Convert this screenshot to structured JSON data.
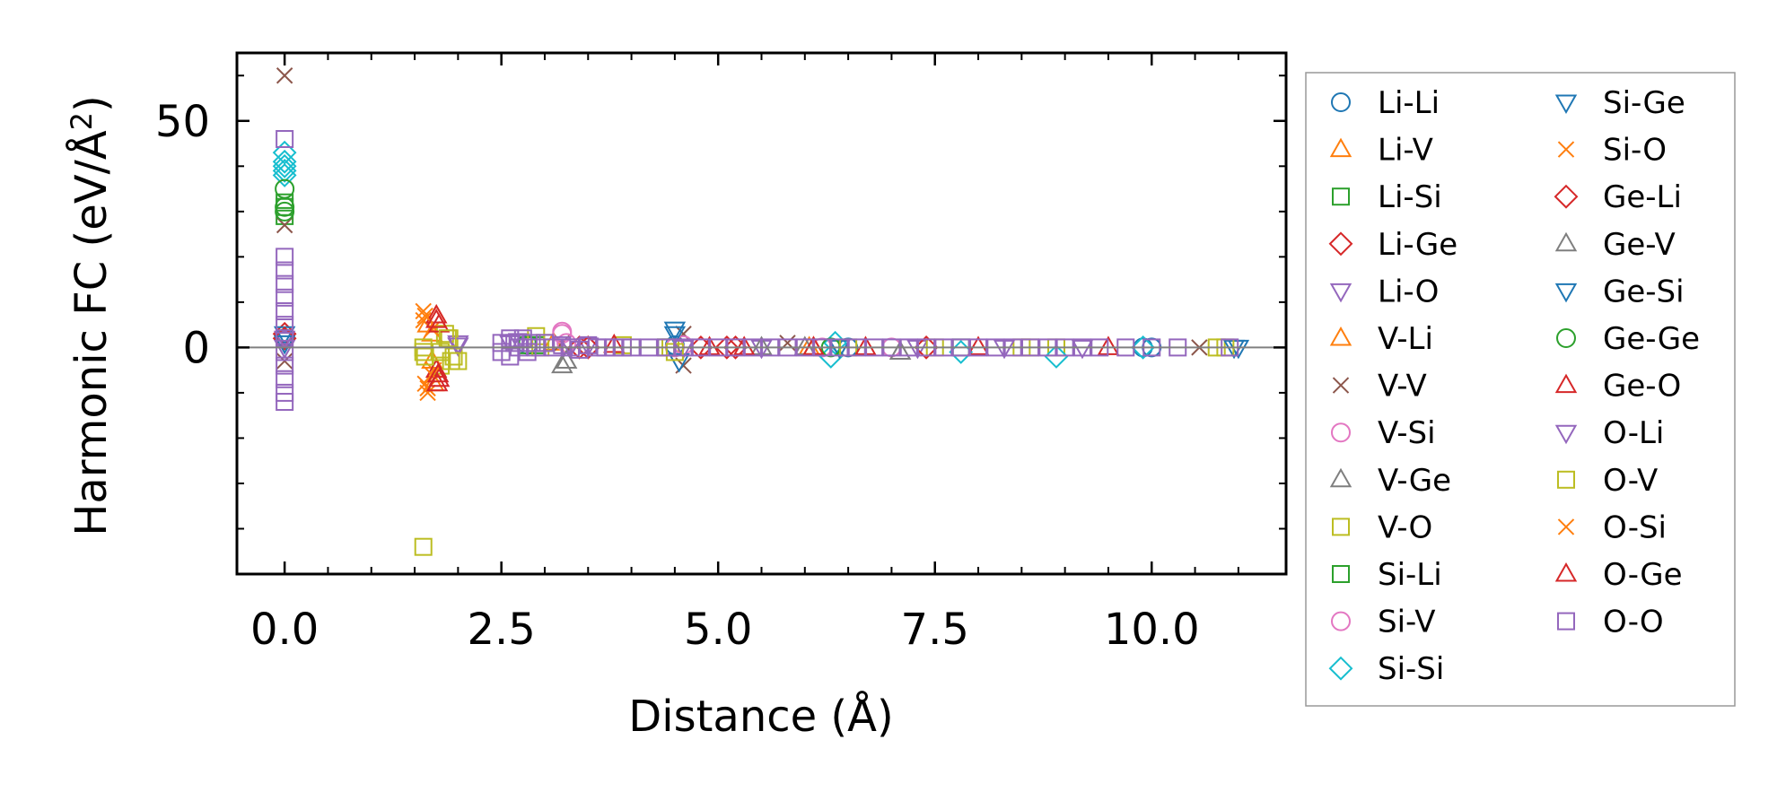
{
  "chart_data": {
    "type": "scatter",
    "title": "",
    "xlabel": "Distance (Å)",
    "ylabel_main": "Harmonic FC (eV/Å",
    "ylabel_sup": "2",
    "ylabel_close": ")",
    "xlim": [
      -0.55,
      11.55
    ],
    "ylim": [
      -50,
      65
    ],
    "xticks": [
      0.0,
      2.5,
      5.0,
      7.5,
      10.0
    ],
    "xtick_labels": [
      "0.0",
      "2.5",
      "5.0",
      "7.5",
      "10.0"
    ],
    "xminor": [
      0.5,
      1.0,
      1.5,
      2.0,
      3.0,
      3.5,
      4.0,
      4.5,
      5.5,
      6.0,
      6.5,
      7.0,
      8.0,
      8.5,
      9.0,
      9.5,
      10.5,
      11.0
    ],
    "yticks": [
      0,
      50
    ],
    "ytick_labels": [
      "0",
      "50"
    ],
    "yminor": [
      -40,
      -30,
      -20,
      -10,
      10,
      20,
      30,
      40,
      60
    ],
    "zero_line": true,
    "grid": false,
    "legend_position": "outside-right",
    "legend_columns": 2,
    "series": [
      {
        "name": "Li-Li",
        "marker": "circle",
        "color": "#1f77b4",
        "points": [
          [
            0,
            2
          ],
          [
            10,
            0
          ],
          [
            9.9,
            0
          ],
          [
            4.5,
            0.5
          ],
          [
            2.8,
            0.6
          ],
          [
            6.5,
            0
          ]
        ]
      },
      {
        "name": "Li-V",
        "marker": "triangle-up",
        "color": "#ff7f0e",
        "points": [
          [
            1.65,
            5
          ],
          [
            1.7,
            -3
          ],
          [
            1.75,
            7
          ],
          [
            6.1,
            0
          ],
          [
            3.1,
            1
          ]
        ]
      },
      {
        "name": "Li-Si",
        "marker": "square",
        "color": "#2ca02c",
        "points": [
          [
            0,
            31
          ],
          [
            0,
            29
          ],
          [
            2.9,
            0.5
          ],
          [
            4.4,
            0
          ]
        ]
      },
      {
        "name": "Li-Ge",
        "marker": "diamond",
        "color": "#d62728",
        "points": [
          [
            0,
            3
          ],
          [
            3.4,
            0
          ],
          [
            4.8,
            0
          ],
          [
            5.2,
            0
          ]
        ]
      },
      {
        "name": "Li-O",
        "marker": "triangle-down",
        "color": "#9467bd",
        "points": [
          [
            0,
            2
          ],
          [
            2.0,
            1
          ],
          [
            2.7,
            1.5
          ],
          [
            3.5,
            0.5
          ],
          [
            5.5,
            0
          ],
          [
            7.3,
            0
          ],
          [
            9.2,
            0
          ]
        ]
      },
      {
        "name": "V-Li",
        "marker": "triangle-up",
        "color": "#ff7f0e",
        "points": [
          [
            1.7,
            3
          ],
          [
            1.72,
            -8
          ],
          [
            6.05,
            0
          ]
        ]
      },
      {
        "name": "V-V",
        "marker": "x",
        "color": "#8c564b",
        "points": [
          [
            0,
            60
          ],
          [
            0,
            27
          ],
          [
            0,
            -3
          ],
          [
            3.2,
            1
          ],
          [
            4.6,
            -4
          ],
          [
            4.6,
            3
          ],
          [
            5.8,
            1
          ],
          [
            10.55,
            0
          ]
        ]
      },
      {
        "name": "V-Si",
        "marker": "circle",
        "color": "#e377c2",
        "points": [
          [
            3.2,
            3.5
          ],
          [
            3.25,
            1
          ],
          [
            4.5,
            0
          ],
          [
            7.0,
            0
          ]
        ]
      },
      {
        "name": "V-Ge",
        "marker": "triangle-up",
        "color": "#7f7f7f",
        "points": [
          [
            3.2,
            -4
          ],
          [
            3.25,
            -3
          ],
          [
            7.1,
            -1
          ],
          [
            5.5,
            0
          ]
        ]
      },
      {
        "name": "V-O",
        "marker": "square",
        "color": "#bcbd22",
        "points": [
          [
            1.6,
            -44
          ],
          [
            1.6,
            -1
          ],
          [
            1.8,
            -4
          ],
          [
            1.9,
            2
          ],
          [
            1.95,
            -2
          ],
          [
            1.85,
            3
          ],
          [
            2.0,
            -3
          ],
          [
            3.0,
            1
          ],
          [
            3.9,
            0.5
          ],
          [
            4.45,
            0
          ],
          [
            6.2,
            0
          ],
          [
            7.5,
            0
          ],
          [
            8.5,
            0
          ],
          [
            8.9,
            0
          ],
          [
            10.75,
            0
          ]
        ]
      },
      {
        "name": "Si-Li",
        "marker": "square",
        "color": "#2ca02c",
        "points": [
          [
            0,
            32
          ],
          [
            2.8,
            0.5
          ],
          [
            7.8,
            0
          ]
        ]
      },
      {
        "name": "Si-V",
        "marker": "circle",
        "color": "#e377c2",
        "points": [
          [
            3.2,
            3
          ],
          [
            4.6,
            0.5
          ],
          [
            6.2,
            0
          ]
        ]
      },
      {
        "name": "Si-Si",
        "marker": "diamond",
        "color": "#17becf",
        "points": [
          [
            0,
            43
          ],
          [
            0,
            41
          ],
          [
            0,
            40
          ],
          [
            0,
            39
          ],
          [
            0,
            38
          ],
          [
            6.3,
            -2
          ],
          [
            6.35,
            1
          ],
          [
            7.8,
            -1
          ],
          [
            8.9,
            -2
          ],
          [
            9.9,
            0
          ]
        ]
      },
      {
        "name": "Si-Ge",
        "marker": "triangle-down",
        "color": "#1f77b4",
        "points": [
          [
            0,
            3
          ],
          [
            4.5,
            4
          ],
          [
            4.55,
            -3
          ],
          [
            10.95,
            0
          ]
        ]
      },
      {
        "name": "Si-O",
        "marker": "x",
        "color": "#ff7f0e",
        "points": [
          [
            1.6,
            8
          ],
          [
            1.6,
            6
          ],
          [
            1.62,
            -8
          ],
          [
            1.65,
            -10
          ],
          [
            1.7,
            4
          ],
          [
            1.72,
            -5
          ]
        ]
      },
      {
        "name": "Ge-Li",
        "marker": "diamond",
        "color": "#d62728",
        "points": [
          [
            0,
            2
          ],
          [
            3.5,
            0
          ],
          [
            5.1,
            0
          ],
          [
            7.4,
            0
          ]
        ]
      },
      {
        "name": "Ge-V",
        "marker": "triangle-up",
        "color": "#7f7f7f",
        "points": [
          [
            3.25,
            -3
          ],
          [
            6.0,
            0
          ],
          [
            7.1,
            -1
          ]
        ]
      },
      {
        "name": "Ge-Si",
        "marker": "triangle-down",
        "color": "#1f77b4",
        "points": [
          [
            0,
            1
          ],
          [
            4.5,
            3
          ],
          [
            6.4,
            0
          ],
          [
            11.0,
            0
          ]
        ]
      },
      {
        "name": "Ge-Ge",
        "marker": "circle",
        "color": "#2ca02c",
        "points": [
          [
            0,
            35
          ],
          [
            0,
            31
          ],
          [
            0,
            30
          ],
          [
            6.3,
            0
          ]
        ]
      },
      {
        "name": "Ge-O",
        "marker": "triangle-up",
        "color": "#d62728",
        "points": [
          [
            1.75,
            7
          ],
          [
            1.78,
            5
          ],
          [
            1.75,
            -5
          ],
          [
            1.78,
            -7
          ],
          [
            3.8,
            0.5
          ],
          [
            4.9,
            0
          ],
          [
            6.1,
            0
          ],
          [
            8.0,
            0
          ]
        ]
      },
      {
        "name": "O-Li",
        "marker": "triangle-down",
        "color": "#9467bd",
        "points": [
          [
            0,
            0
          ],
          [
            2.0,
            0.5
          ],
          [
            2.6,
            1
          ],
          [
            3.3,
            0.3
          ],
          [
            4.6,
            0
          ],
          [
            8.3,
            0
          ]
        ]
      },
      {
        "name": "O-V",
        "marker": "square",
        "color": "#bcbd22",
        "points": [
          [
            1.6,
            0
          ],
          [
            1.62,
            -2
          ],
          [
            1.8,
            -1
          ],
          [
            1.88,
            2
          ],
          [
            1.92,
            -3
          ],
          [
            2.9,
            2.5
          ],
          [
            2.95,
            0
          ],
          [
            4.4,
            0
          ],
          [
            4.5,
            -1
          ],
          [
            6.5,
            0
          ],
          [
            8.6,
            0
          ],
          [
            10.85,
            0
          ]
        ]
      },
      {
        "name": "O-Si",
        "marker": "x",
        "color": "#ff7f0e",
        "points": [
          [
            1.62,
            7
          ],
          [
            1.65,
            -9
          ],
          [
            1.7,
            -6
          ]
        ]
      },
      {
        "name": "O-Ge",
        "marker": "triangle-up",
        "color": "#d62728",
        "points": [
          [
            1.75,
            6
          ],
          [
            1.77,
            -6
          ],
          [
            1.76,
            -8
          ],
          [
            5.3,
            0
          ],
          [
            6.7,
            0
          ],
          [
            9.5,
            0
          ]
        ]
      },
      {
        "name": "O-O",
        "marker": "square",
        "color": "#9467bd",
        "points": [
          [
            0,
            46
          ],
          [
            0,
            20
          ],
          [
            0,
            17
          ],
          [
            0,
            14
          ],
          [
            0,
            11
          ],
          [
            0,
            8
          ],
          [
            0,
            5
          ],
          [
            0,
            2
          ],
          [
            0,
            -1
          ],
          [
            0,
            -4
          ],
          [
            0,
            -7
          ],
          [
            0,
            -10
          ],
          [
            0,
            -12
          ],
          [
            2.5,
            1
          ],
          [
            2.5,
            -1
          ],
          [
            2.6,
            2
          ],
          [
            2.6,
            -2
          ],
          [
            2.65,
            1
          ],
          [
            2.7,
            0
          ],
          [
            2.75,
            2
          ],
          [
            2.8,
            -1
          ],
          [
            2.85,
            1
          ],
          [
            2.9,
            0
          ],
          [
            3.0,
            1
          ],
          [
            3.1,
            0
          ],
          [
            3.2,
            0.5
          ],
          [
            3.3,
            0
          ],
          [
            3.4,
            -0.5
          ],
          [
            3.5,
            0.5
          ],
          [
            3.6,
            0
          ],
          [
            3.7,
            0
          ],
          [
            3.8,
            0
          ],
          [
            3.9,
            0
          ],
          [
            4.0,
            0
          ],
          [
            4.2,
            0
          ],
          [
            4.4,
            0
          ],
          [
            4.6,
            0
          ],
          [
            4.8,
            0
          ],
          [
            5.0,
            0
          ],
          [
            5.2,
            0
          ],
          [
            5.4,
            0
          ],
          [
            5.6,
            0
          ],
          [
            5.8,
            0
          ],
          [
            6.0,
            0
          ],
          [
            6.2,
            0
          ],
          [
            6.4,
            0
          ],
          [
            6.6,
            0
          ],
          [
            6.8,
            0
          ],
          [
            7.0,
            0
          ],
          [
            7.2,
            0
          ],
          [
            7.4,
            0
          ],
          [
            7.6,
            0
          ],
          [
            7.8,
            0
          ],
          [
            8.0,
            0
          ],
          [
            8.2,
            0
          ],
          [
            8.4,
            0
          ],
          [
            8.6,
            0
          ],
          [
            8.8,
            0
          ],
          [
            9.0,
            0
          ],
          [
            9.2,
            0
          ],
          [
            9.4,
            0
          ],
          [
            9.7,
            0
          ],
          [
            10.0,
            0
          ],
          [
            10.3,
            0
          ],
          [
            10.9,
            0
          ]
        ]
      }
    ]
  }
}
